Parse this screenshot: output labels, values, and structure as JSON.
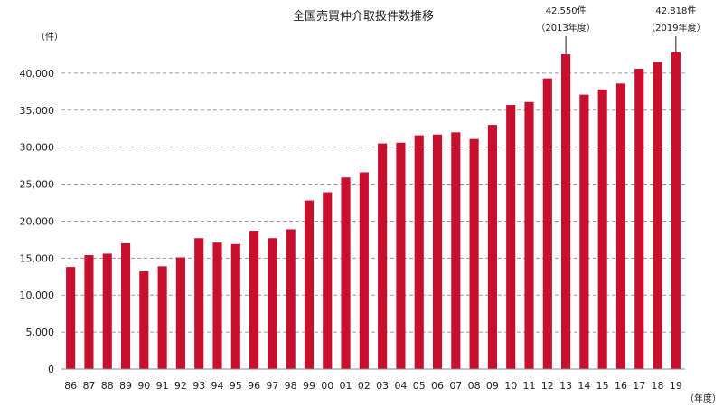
{
  "chart_data": {
    "type": "bar",
    "title": "全国売買仲介取扱件数推移",
    "ylabel": "（件）",
    "xlabel": "（年度）",
    "ylim": [
      0,
      45000
    ],
    "yticks": [
      "0",
      "5,000",
      "10,000",
      "15,000",
      "20,000",
      "25,000",
      "30,000",
      "35,000",
      "40,000"
    ],
    "grid": true,
    "bar_color": "#c8102e",
    "categories": [
      "86",
      "87",
      "88",
      "89",
      "90",
      "91",
      "92",
      "93",
      "94",
      "95",
      "96",
      "97",
      "98",
      "99",
      "00",
      "01",
      "02",
      "03",
      "04",
      "05",
      "06",
      "07",
      "08",
      "09",
      "10",
      "11",
      "12",
      "13",
      "14",
      "15",
      "16",
      "17",
      "18",
      "19"
    ],
    "values": [
      13800,
      15400,
      15600,
      17000,
      13200,
      13900,
      15100,
      17700,
      17100,
      16900,
      18700,
      17700,
      18900,
      22800,
      23900,
      25900,
      26600,
      30500,
      30600,
      31600,
      31700,
      32000,
      31100,
      33000,
      35700,
      36100,
      39300,
      42550,
      37100,
      37800,
      38600,
      40600,
      41500,
      42818
    ],
    "annotations": [
      {
        "category": "13",
        "value_label": "42,550件",
        "period_label": "（2013年度）"
      },
      {
        "category": "19",
        "value_label": "42,818件",
        "period_label": "（2019年度）"
      }
    ]
  }
}
